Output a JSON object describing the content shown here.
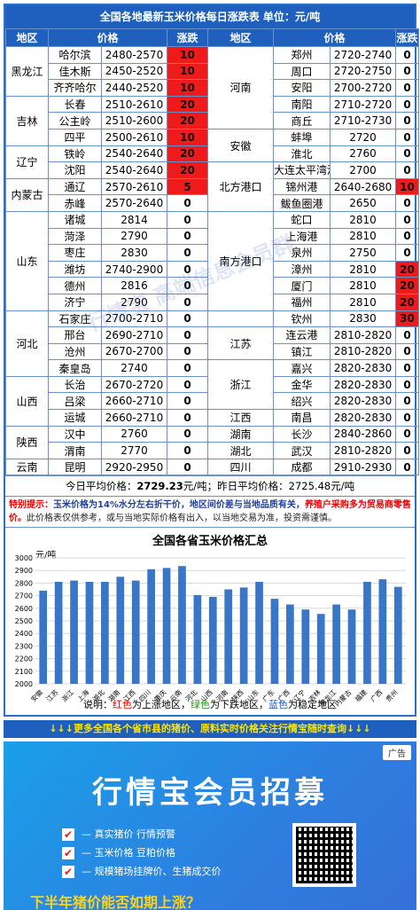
{
  "header": {
    "title": "全国各地最新玉米价格每日涨跌表  单位：元/吨"
  },
  "columns": [
    "地区",
    "价格",
    "涨跌",
    "地区",
    "价格",
    "涨跌"
  ],
  "left_rows": [
    {
      "region": "黑龙江",
      "span": 3,
      "city": "哈尔滨",
      "price": "2480-2570",
      "change": "10",
      "hl": true
    },
    {
      "city": "佳木斯",
      "price": "2450-2520",
      "change": "10",
      "hl": true
    },
    {
      "city": "齐齐哈尔",
      "price": "2440-2520",
      "change": "10",
      "hl": true
    },
    {
      "region": "吉林",
      "span": 3,
      "city": "长春",
      "price": "2510-2610",
      "change": "20",
      "hl": true
    },
    {
      "city": "公主岭",
      "price": "2510-2600",
      "change": "20",
      "hl": true
    },
    {
      "city": "四平",
      "price": "2500-2610",
      "change": "10",
      "hl": true
    },
    {
      "region": "辽宁",
      "span": 2,
      "city": "铁岭",
      "price": "2540-2640",
      "change": "20",
      "hl": true
    },
    {
      "city": "沈阳",
      "price": "2540-2640",
      "change": "20",
      "hl": true
    },
    {
      "region": "内蒙古",
      "span": 2,
      "city": "通辽",
      "price": "2570-2610",
      "change": "5",
      "hl": true
    },
    {
      "city": "赤峰",
      "price": "2570-2640",
      "change": "0",
      "hl": false
    },
    {
      "region": "山东",
      "span": 6,
      "city": "诸城",
      "price": "2814",
      "change": "0",
      "hl": false
    },
    {
      "city": "菏泽",
      "price": "2790",
      "change": "0",
      "hl": false
    },
    {
      "city": "枣庄",
      "price": "2830",
      "change": "0",
      "hl": false
    },
    {
      "city": "潍坊",
      "price": "2740-2900",
      "change": "0",
      "hl": false
    },
    {
      "city": "德州",
      "price": "2816",
      "change": "0",
      "hl": false
    },
    {
      "city": "济宁",
      "price": "2790",
      "change": "0",
      "hl": false
    },
    {
      "region": "河北",
      "span": 4,
      "city": "石家庄",
      "price": "2700-2710",
      "change": "0",
      "hl": false
    },
    {
      "city": "邢台",
      "price": "2690-2710",
      "change": "0",
      "hl": false
    },
    {
      "city": "沧州",
      "price": "2670-2700",
      "change": "0",
      "hl": false
    },
    {
      "city": "秦皇岛",
      "price": "2740",
      "change": "0",
      "hl": false
    },
    {
      "region": "山西",
      "span": 3,
      "city": "长治",
      "price": "2670-2720",
      "change": "0",
      "hl": false
    },
    {
      "city": "吕梁",
      "price": "2660-2710",
      "change": "0",
      "hl": false
    },
    {
      "city": "运城",
      "price": "2660-2710",
      "change": "0",
      "hl": false
    },
    {
      "region": "陕西",
      "span": 2,
      "city": "汉中",
      "price": "2760",
      "change": "0",
      "hl": false
    },
    {
      "city": "渭南",
      "price": "2770",
      "change": "0",
      "hl": false
    },
    {
      "region": "云南",
      "span": 1,
      "city": "昆明",
      "price": "2920-2950",
      "change": "0",
      "hl": false
    }
  ],
  "right_rows": [
    {
      "region": "河南",
      "span": 5,
      "city": "郑州",
      "price": "2720-2740",
      "change": "0",
      "hl": false
    },
    {
      "city": "周口",
      "price": "2720-2750",
      "change": "0",
      "hl": false
    },
    {
      "city": "安阳",
      "price": "2700-2720",
      "change": "0",
      "hl": false
    },
    {
      "city": "南阳",
      "price": "2710-2720",
      "change": "0",
      "hl": false
    },
    {
      "city": "商丘",
      "price": "2710-2730",
      "change": "0",
      "hl": false
    },
    {
      "region": "安徽",
      "span": 2,
      "city": "蚌埠",
      "price": "2720",
      "change": "0",
      "hl": false
    },
    {
      "city": "淮北",
      "price": "2760",
      "change": "0",
      "hl": false
    },
    {
      "region": "北方港口",
      "span": 3,
      "city": "大连太平湾港",
      "price": "2700",
      "change": "0",
      "hl": false
    },
    {
      "city": "锦州港",
      "price": "2640-2680",
      "change": "10",
      "hl": true
    },
    {
      "city": "鲅鱼圈港",
      "price": "2650",
      "change": "0",
      "hl": false
    },
    {
      "region": "南方港口",
      "span": 6,
      "city": "蛇口",
      "price": "2810",
      "change": "0",
      "hl": false
    },
    {
      "city": "上海港",
      "price": "2810",
      "change": "0",
      "hl": false
    },
    {
      "city": "泉州",
      "price": "2750",
      "change": "0",
      "hl": false
    },
    {
      "city": "漳州",
      "price": "2810",
      "change": "20",
      "hl": true
    },
    {
      "city": "厦门",
      "price": "2810",
      "change": "20",
      "hl": true
    },
    {
      "city": "福州",
      "price": "2810",
      "change": "20",
      "hl": true
    },
    {
      "region": "",
      "span": 1,
      "city": "钦州",
      "price": "2830",
      "change": "30",
      "hl": true
    },
    {
      "region": "江苏",
      "span": 2,
      "city": "连云港",
      "price": "2810-2820",
      "change": "0",
      "hl": false
    },
    {
      "city": "镇江",
      "price": "2810-2820",
      "change": "0",
      "hl": false
    },
    {
      "region": "浙江",
      "span": 3,
      "city": "嘉兴",
      "price": "2820-2830",
      "change": "0",
      "hl": false
    },
    {
      "city": "金华",
      "price": "2820-2830",
      "change": "0",
      "hl": false
    },
    {
      "city": "绍兴",
      "price": "2820-2830",
      "change": "0",
      "hl": false
    },
    {
      "region": "江西",
      "span": 1,
      "city": "南昌",
      "price": "2820-2830",
      "change": "0",
      "hl": false
    },
    {
      "region": "湖南",
      "span": 1,
      "city": "长沙",
      "price": "2840-2860",
      "change": "0",
      "hl": false
    },
    {
      "region": "湖北",
      "span": 1,
      "city": "武汉",
      "price": "2810-2820",
      "change": "0",
      "hl": false
    },
    {
      "region": "四川",
      "span": 1,
      "city": "成都",
      "price": "2910-2930",
      "change": "0",
      "hl": false
    }
  ],
  "summary": {
    "today_label": "今日平均价格：",
    "today_value": "2729.23",
    "today_unit": "元/吨；昨日平均价格：",
    "yesterday_value": "2725.48",
    "yesterday_unit": "元/吨"
  },
  "notice": {
    "label": "特别提示：",
    "body": "玉米价格为14%水分左右折干价，地区间价差与当地品质有关，",
    "red": "养殖户采购多为贸易商零售价。",
    "rest": "此价格表仅供参考，或与当地实际价格有出入，以当地交易为准，投资需谨慎。"
  },
  "colors": {
    "header_blue": "#1f5fbd",
    "highlight_red": "#ef1a1a",
    "bar_blue": "#3a76c8"
  },
  "chart_data": {
    "type": "bar",
    "title": "全国各省玉米价格汇总",
    "ylabel": "元/吨",
    "ylim": [
      2000,
      3000
    ],
    "yticks": [
      2000,
      2100,
      2200,
      2300,
      2400,
      2500,
      2600,
      2700,
      2800,
      2900,
      3000
    ],
    "categories": [
      "安徽",
      "江苏",
      "浙江",
      "上海",
      "湖北",
      "湖南",
      "江西",
      "四川",
      "重庆",
      "云南",
      "河北",
      "山西",
      "河南",
      "陕西",
      "山东",
      "广东",
      "广西",
      "辽宁",
      "吉林",
      "黑龙江",
      "内蒙古",
      "福建",
      "广西",
      "贵州"
    ],
    "values": [
      2740,
      2810,
      2820,
      2810,
      2810,
      2850,
      2820,
      2910,
      2920,
      2935,
      2705,
      2690,
      2750,
      2765,
      2810,
      2675,
      2630,
      2590,
      2555,
      2630,
      2590,
      2810,
      2830,
      2770
    ],
    "grid": true
  },
  "legend_note": {
    "prefix": "说明：",
    "red": "红色",
    "red_txt": "为上涨地区，",
    "green": "绿色",
    "green_txt": "为下跌地区，",
    "blue": "蓝色",
    "blue_txt": "为稳定地区"
  },
  "footer_bar": {
    "text": "↓↓↓更多全国各个省市县的猪价、原料实时价格关注行情宝随时查询↓↓↓"
  },
  "ad": {
    "tag": "广告",
    "title": "行情宝会员招募",
    "items": [
      "— 真实猪价  行情预警",
      "— 玉米价格  豆粕价格",
      "— 规模猪场挂牌价、生猪成交价"
    ],
    "bottom": "下半年猪价能否如期上涨？"
  },
  "watermark": "行情宝 高端信息会员群"
}
